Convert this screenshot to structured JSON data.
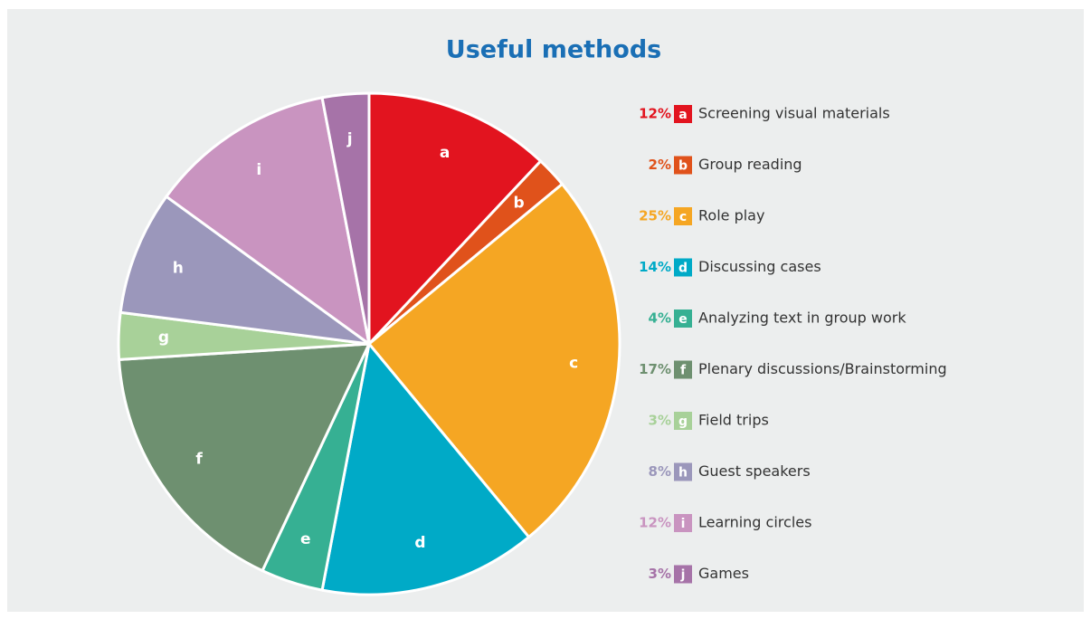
{
  "chart_data": {
    "type": "pie",
    "title": "Useful methods",
    "letters": [
      "a",
      "b",
      "c",
      "d",
      "e",
      "f",
      "g",
      "h",
      "i",
      "j"
    ],
    "categories": [
      "Screening visual materials",
      "Group reading",
      "Role play",
      "Discussing cases",
      "Analyzing text in group work",
      "Plenary discussions/Brainstorming",
      "Field trips",
      "Guest speakers",
      "Learning circles",
      "Games"
    ],
    "values": [
      12,
      2,
      25,
      14,
      4,
      17,
      3,
      8,
      12,
      3
    ],
    "value_labels": [
      "12%",
      "2%",
      "25%",
      "14%",
      "4%",
      "17%",
      "3%",
      "8%",
      "12%",
      "3%"
    ],
    "colors": [
      "#e2141f",
      "#e0521b",
      "#f5a623",
      "#00aac7",
      "#36b093",
      "#6e9070",
      "#a8d199",
      "#9b97bb",
      "#c994c0",
      "#a673a8"
    ]
  }
}
